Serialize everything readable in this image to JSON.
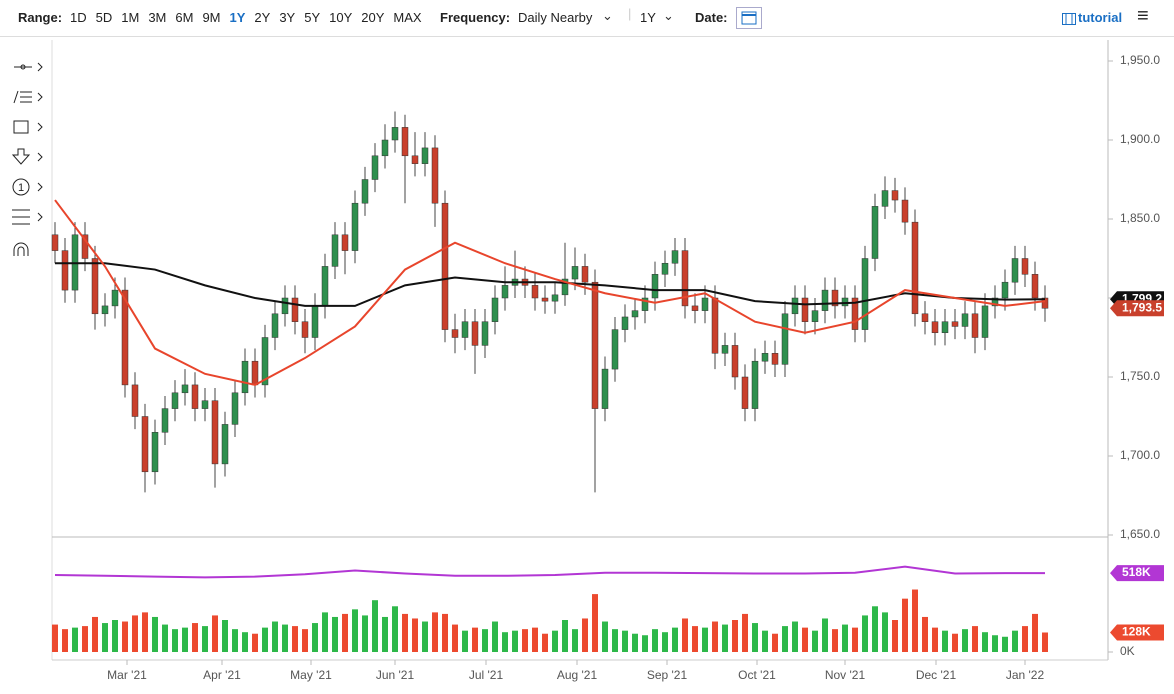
{
  "toolbar": {
    "range_label": "Range:",
    "ranges": [
      "1D",
      "5D",
      "1M",
      "3M",
      "6M",
      "9M",
      "1Y",
      "2Y",
      "3Y",
      "5Y",
      "10Y",
      "20Y",
      "MAX"
    ],
    "active_range": "1Y",
    "frequency_label": "Frequency:",
    "frequency": "Daily Nearby",
    "period": "1Y",
    "date_label": "Date:",
    "tutorial": "tutorial"
  },
  "drawing_tools": {
    "counter_icon": "1"
  },
  "chart_data": {
    "type": "candlestick",
    "xlim": [
      -0.3,
      105.3
    ],
    "xticks": [
      {
        "value": 7.2,
        "label": "Mar '21"
      },
      {
        "value": 16.7,
        "label": "Apr '21"
      },
      {
        "value": 25.6,
        "label": "May '21"
      },
      {
        "value": 34,
        "label": "Jun '21"
      },
      {
        "value": 43.1,
        "label": "Jul '21"
      },
      {
        "value": 52.2,
        "label": "Aug '21"
      },
      {
        "value": 61.2,
        "label": "Sep '21"
      },
      {
        "value": 70.2,
        "label": "Oct '21"
      },
      {
        "value": 79,
        "label": "Nov '21"
      },
      {
        "value": 88.1,
        "label": "Dec '21"
      },
      {
        "value": 97,
        "label": "Jan '22"
      }
    ],
    "ylim": [
      1650,
      1950
    ],
    "yticks": [
      {
        "value": 1650,
        "label": "1,650.0"
      },
      {
        "value": 1700,
        "label": "1,700.0"
      },
      {
        "value": 1750,
        "label": "1,750.0"
      },
      {
        "value": 1800,
        "label": "1,800.0"
      },
      {
        "value": 1850,
        "label": "1,850.0"
      },
      {
        "value": 1900,
        "label": "1,900.0"
      },
      {
        "value": 1950,
        "label": "1,950.0"
      }
    ],
    "up_color": "#2f8f4e",
    "down_color": "#c9402c",
    "open": [
      1840,
      1830,
      1805,
      1840,
      1825,
      1790,
      1795,
      1805,
      1745,
      1725,
      1690,
      1715,
      1730,
      1740,
      1745,
      1730,
      1735,
      1695,
      1720,
      1740,
      1760,
      1745,
      1775,
      1790,
      1800,
      1785,
      1775,
      1795,
      1820,
      1840,
      1830,
      1860,
      1875,
      1890,
      1900,
      1908,
      1890,
      1885,
      1895,
      1860,
      1780,
      1775,
      1785,
      1770,
      1785,
      1800,
      1808,
      1812,
      1808,
      1800,
      1798,
      1802,
      1812,
      1820,
      1810,
      1730,
      1755,
      1780,
      1788,
      1792,
      1800,
      1815,
      1822,
      1830,
      1795,
      1792,
      1800,
      1765,
      1770,
      1750,
      1730,
      1760,
      1765,
      1758,
      1790,
      1800,
      1785,
      1792,
      1805,
      1795,
      1800,
      1780,
      1825,
      1858,
      1868,
      1862,
      1848,
      1790,
      1785,
      1778,
      1785,
      1782,
      1790,
      1775,
      1795,
      1800,
      1810,
      1825,
      1815,
      1800
    ],
    "high": [
      1848,
      1838,
      1848,
      1848,
      1833,
      1803,
      1813,
      1813,
      1753,
      1733,
      1723,
      1738,
      1748,
      1755,
      1753,
      1743,
      1743,
      1728,
      1748,
      1768,
      1768,
      1783,
      1798,
      1808,
      1808,
      1793,
      1803,
      1828,
      1848,
      1848,
      1868,
      1883,
      1898,
      1910,
      1918,
      1916,
      1905,
      1905,
      1903,
      1868,
      1790,
      1793,
      1793,
      1793,
      1808,
      1820,
      1830,
      1820,
      1816,
      1808,
      1810,
      1835,
      1832,
      1828,
      1818,
      1763,
      1788,
      1796,
      1800,
      1808,
      1823,
      1830,
      1838,
      1838,
      1803,
      1808,
      1808,
      1778,
      1778,
      1758,
      1768,
      1773,
      1773,
      1798,
      1808,
      1808,
      1800,
      1813,
      1813,
      1808,
      1808,
      1833,
      1866,
      1877,
      1876,
      1870,
      1856,
      1798,
      1793,
      1793,
      1793,
      1798,
      1798,
      1803,
      1808,
      1818,
      1833,
      1833,
      1823,
      1808
    ],
    "low": [
      1822,
      1797,
      1797,
      1817,
      1780,
      1782,
      1787,
      1737,
      1717,
      1677,
      1682,
      1707,
      1722,
      1732,
      1722,
      1722,
      1680,
      1687,
      1712,
      1732,
      1737,
      1737,
      1767,
      1782,
      1777,
      1765,
      1767,
      1787,
      1812,
      1815,
      1822,
      1852,
      1867,
      1882,
      1892,
      1860,
      1877,
      1877,
      1845,
      1772,
      1765,
      1767,
      1752,
      1762,
      1777,
      1792,
      1800,
      1800,
      1792,
      1790,
      1790,
      1795,
      1805,
      1802,
      1677,
      1722,
      1747,
      1772,
      1780,
      1784,
      1792,
      1807,
      1814,
      1787,
      1784,
      1784,
      1755,
      1757,
      1742,
      1722,
      1722,
      1752,
      1750,
      1750,
      1782,
      1777,
      1777,
      1784,
      1787,
      1787,
      1772,
      1772,
      1817,
      1850,
      1854,
      1840,
      1782,
      1777,
      1770,
      1770,
      1774,
      1774,
      1765,
      1767,
      1787,
      1792,
      1802,
      1807,
      1792,
      1785
    ],
    "close": [
      1830,
      1805,
      1840,
      1825,
      1790,
      1795,
      1805,
      1745,
      1725,
      1690,
      1715,
      1730,
      1740,
      1745,
      1730,
      1735,
      1695,
      1720,
      1740,
      1760,
      1745,
      1775,
      1790,
      1800,
      1785,
      1775,
      1795,
      1820,
      1840,
      1830,
      1860,
      1875,
      1890,
      1900,
      1908,
      1890,
      1885,
      1895,
      1860,
      1780,
      1775,
      1785,
      1770,
      1785,
      1800,
      1808,
      1812,
      1808,
      1800,
      1798,
      1802,
      1812,
      1820,
      1810,
      1730,
      1755,
      1780,
      1788,
      1792,
      1800,
      1815,
      1822,
      1830,
      1795,
      1792,
      1800,
      1765,
      1770,
      1750,
      1730,
      1760,
      1765,
      1758,
      1790,
      1800,
      1785,
      1792,
      1805,
      1795,
      1800,
      1780,
      1825,
      1858,
      1868,
      1862,
      1848,
      1790,
      1785,
      1778,
      1785,
      1782,
      1790,
      1775,
      1795,
      1800,
      1810,
      1825,
      1815,
      1800,
      1793.5
    ],
    "close_label": "1,793.5",
    "moving_averages": [
      {
        "color": "#111111",
        "x": [
          0,
          5,
          10,
          15,
          20,
          25,
          30,
          35,
          40,
          45,
          50,
          55,
          60,
          65,
          70,
          75,
          80,
          85,
          90,
          95,
          99
        ],
        "values": [
          1822,
          1822,
          1818,
          1808,
          1800,
          1795,
          1795,
          1808,
          1813,
          1810,
          1810,
          1808,
          1805,
          1805,
          1798,
          1796,
          1797,
          1803,
          1800,
          1799,
          1799.2
        ],
        "last_label": "1,799.2"
      },
      {
        "color": "#e8452c",
        "x": [
          0,
          5,
          10,
          15,
          20,
          25,
          30,
          35,
          40,
          45,
          50,
          55,
          60,
          65,
          70,
          75,
          80,
          85,
          90,
          95,
          99
        ],
        "values": [
          1862,
          1820,
          1768,
          1752,
          1745,
          1762,
          1782,
          1818,
          1835,
          1822,
          1812,
          1803,
          1797,
          1803,
          1785,
          1778,
          1785,
          1805,
          1800,
          1795,
          1798
        ]
      }
    ],
    "volume": {
      "ylim": [
        0,
        735
      ],
      "yticks": [
        {
          "value": 0,
          "label": "0K"
        }
      ],
      "last_label": "128K",
      "up_color": "#2eb84a",
      "down_color": "#ec4a2f",
      "values": [
        180,
        150,
        160,
        170,
        230,
        190,
        210,
        200,
        240,
        260,
        230,
        180,
        150,
        160,
        190,
        170,
        240,
        210,
        150,
        130,
        120,
        160,
        200,
        180,
        170,
        150,
        190,
        260,
        230,
        250,
        280,
        240,
        340,
        230,
        300,
        250,
        220,
        200,
        260,
        250,
        180,
        140,
        160,
        150,
        200,
        130,
        140,
        150,
        160,
        120,
        140,
        210,
        150,
        220,
        380,
        200,
        150,
        140,
        120,
        110,
        150,
        130,
        160,
        220,
        170,
        160,
        200,
        180,
        210,
        250,
        190,
        140,
        120,
        170,
        200,
        160,
        140,
        220,
        150,
        180,
        160,
        240,
        300,
        260,
        210,
        350,
        410,
        230,
        160,
        140,
        120,
        150,
        170,
        130,
        110,
        100,
        140,
        170,
        250,
        128
      ],
      "average": {
        "color": "#b236d4",
        "x": [
          0,
          5,
          10,
          15,
          20,
          25,
          30,
          35,
          40,
          45,
          50,
          55,
          60,
          65,
          70,
          75,
          80,
          85,
          90,
          95,
          99
        ],
        "values": [
          505,
          500,
          495,
          490,
          495,
          510,
          535,
          515,
          500,
          500,
          505,
          520,
          520,
          518,
          515,
          515,
          520,
          560,
          515,
          518,
          518
        ],
        "last_label": "518K"
      }
    }
  }
}
